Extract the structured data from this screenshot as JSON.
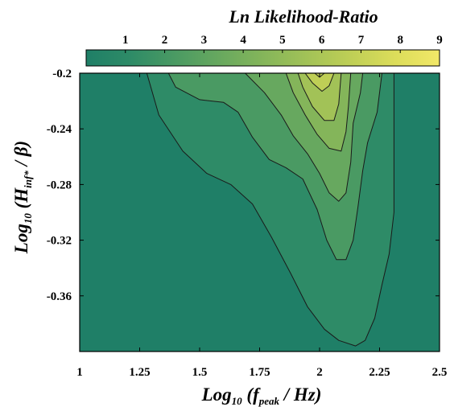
{
  "chart_data": {
    "type": "heatmap",
    "title": "Ln Likelihood-Ratio",
    "xlabel": {
      "prefix": "Log",
      "sub": "10",
      "open": " (f",
      "sub2": "peak",
      "close": " / Hz)"
    },
    "ylabel": {
      "prefix": "Log",
      "sub": "10",
      "open": " (H",
      "sub2": "inf*",
      "close": " / β)"
    },
    "xlim": [
      1,
      2.5
    ],
    "ylim": [
      -0.4,
      -0.2
    ],
    "x_ticks": [
      1,
      1.25,
      1.5,
      1.75,
      2,
      2.25,
      2.5
    ],
    "x_tick_labels": [
      "1",
      "1.25",
      "1.5",
      "1.75",
      "2",
      "2.25",
      "2.5"
    ],
    "y_ticks": [
      -0.2,
      -0.24,
      -0.28,
      -0.32,
      -0.36
    ],
    "y_tick_labels": [
      "-0.2",
      "-0.24",
      "-0.28",
      "-0.32",
      "-0.36"
    ],
    "colorbar": {
      "range": [
        0,
        9
      ],
      "ticks": [
        1,
        2,
        3,
        4,
        5,
        6,
        7,
        8,
        9
      ],
      "tick_labels": [
        "1",
        "2",
        "3",
        "4",
        "5",
        "6",
        "7",
        "8",
        "9"
      ],
      "colors": [
        "#1f7f67",
        "#2e8b67",
        "#4a9a63",
        "#67a85f",
        "#84b55a",
        "#a2c257",
        "#bfcf56",
        "#dcdd5a",
        "#f2e868"
      ]
    },
    "contour_levels": [
      1,
      2,
      3,
      4,
      5,
      6
    ],
    "contours": [
      {
        "level": 1,
        "points": [
          [
            1.28,
            -0.2
          ],
          [
            1.33,
            -0.23
          ],
          [
            1.43,
            -0.256
          ],
          [
            1.53,
            -0.272
          ],
          [
            1.63,
            -0.28
          ],
          [
            1.72,
            -0.294
          ],
          [
            1.8,
            -0.318
          ],
          [
            1.88,
            -0.344
          ],
          [
            1.95,
            -0.368
          ],
          [
            2.02,
            -0.384
          ],
          [
            2.08,
            -0.392
          ],
          [
            2.15,
            -0.396
          ],
          [
            2.19,
            -0.392
          ],
          [
            2.23,
            -0.376
          ],
          [
            2.26,
            -0.352
          ],
          [
            2.29,
            -0.33
          ],
          [
            2.31,
            -0.3
          ],
          [
            2.31,
            -0.26
          ],
          [
            2.31,
            -0.22
          ],
          [
            2.31,
            -0.2
          ]
        ]
      },
      {
        "level": 2,
        "points": [
          [
            1.37,
            -0.2
          ],
          [
            1.4,
            -0.21
          ],
          [
            1.5,
            -0.219
          ],
          [
            1.6,
            -0.221
          ],
          [
            1.66,
            -0.228
          ],
          [
            1.72,
            -0.246
          ],
          [
            1.79,
            -0.262
          ],
          [
            1.86,
            -0.268
          ],
          [
            1.93,
            -0.276
          ],
          [
            1.99,
            -0.298
          ],
          [
            2.03,
            -0.32
          ],
          [
            2.07,
            -0.334
          ],
          [
            2.11,
            -0.334
          ],
          [
            2.14,
            -0.32
          ],
          [
            2.16,
            -0.296
          ],
          [
            2.18,
            -0.27
          ],
          [
            2.2,
            -0.25
          ],
          [
            2.24,
            -0.228
          ],
          [
            2.26,
            -0.2
          ]
        ]
      },
      {
        "level": 3,
        "points": [
          [
            1.69,
            -0.2
          ],
          [
            1.77,
            -0.214
          ],
          [
            1.84,
            -0.23
          ],
          [
            1.89,
            -0.245
          ],
          [
            1.95,
            -0.258
          ],
          [
            2.0,
            -0.272
          ],
          [
            2.04,
            -0.286
          ],
          [
            2.08,
            -0.292
          ],
          [
            2.11,
            -0.286
          ],
          [
            2.13,
            -0.264
          ],
          [
            2.14,
            -0.236
          ],
          [
            2.17,
            -0.214
          ],
          [
            2.18,
            -0.2
          ]
        ]
      },
      {
        "level": 4,
        "points": [
          [
            1.86,
            -0.2
          ],
          [
            1.89,
            -0.214
          ],
          [
            1.94,
            -0.23
          ],
          [
            1.99,
            -0.244
          ],
          [
            2.04,
            -0.254
          ],
          [
            2.09,
            -0.256
          ],
          [
            2.11,
            -0.242
          ],
          [
            2.12,
            -0.224
          ],
          [
            2.13,
            -0.2
          ]
        ]
      },
      {
        "level": 5,
        "points": [
          [
            1.91,
            -0.2
          ],
          [
            1.93,
            -0.21
          ],
          [
            1.97,
            -0.224
          ],
          [
            2.02,
            -0.234
          ],
          [
            2.06,
            -0.234
          ],
          [
            2.08,
            -0.222
          ],
          [
            2.09,
            -0.2
          ]
        ]
      },
      {
        "level": 6,
        "points": [
          [
            1.94,
            -0.2
          ],
          [
            1.97,
            -0.207
          ],
          [
            2.01,
            -0.213
          ],
          [
            2.04,
            -0.209
          ],
          [
            2.06,
            -0.2
          ]
        ]
      }
    ],
    "peak": [
      2.0,
      -0.2
    ]
  }
}
